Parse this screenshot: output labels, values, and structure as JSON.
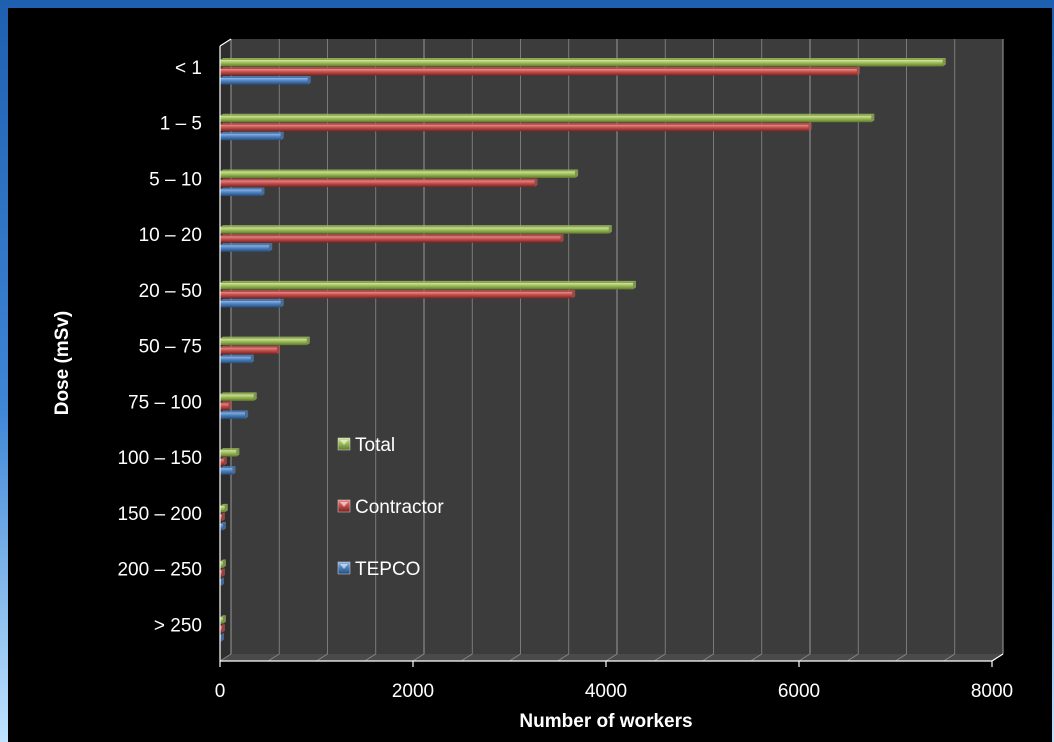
{
  "chart_data": {
    "type": "bar",
    "orientation": "horizontal",
    "title": "",
    "xlabel": "Number of workers",
    "ylabel": "Dose (mSv)",
    "xlim": [
      0,
      8000
    ],
    "x_ticks": [
      "0",
      "2000",
      "4000",
      "6000",
      "8000"
    ],
    "categories": [
      "< 1",
      "1 – 5",
      "5 – 10",
      "10 – 20",
      "20 – 50",
      "50 – 75",
      "75 – 100",
      "100 – 150",
      "150 – 200",
      "200 – 250",
      "> 250"
    ],
    "series": [
      {
        "name": "Total",
        "color": "#9bbb59",
        "values": [
          7490,
          6750,
          3680,
          4030,
          4280,
          900,
          350,
          170,
          50,
          30,
          30
        ]
      },
      {
        "name": "Contractor",
        "color": "#c0504d",
        "values": [
          6600,
          6100,
          3260,
          3530,
          3650,
          590,
          90,
          40,
          20,
          20,
          20
        ]
      },
      {
        "name": "TEPCO",
        "color": "#4f81bd",
        "values": [
          910,
          630,
          430,
          510,
          630,
          320,
          260,
          130,
          30,
          10,
          10
        ]
      }
    ],
    "grid": true,
    "legend_position": "inside-center-left",
    "background": "#000000",
    "plot_background": "#3c3c3c"
  }
}
